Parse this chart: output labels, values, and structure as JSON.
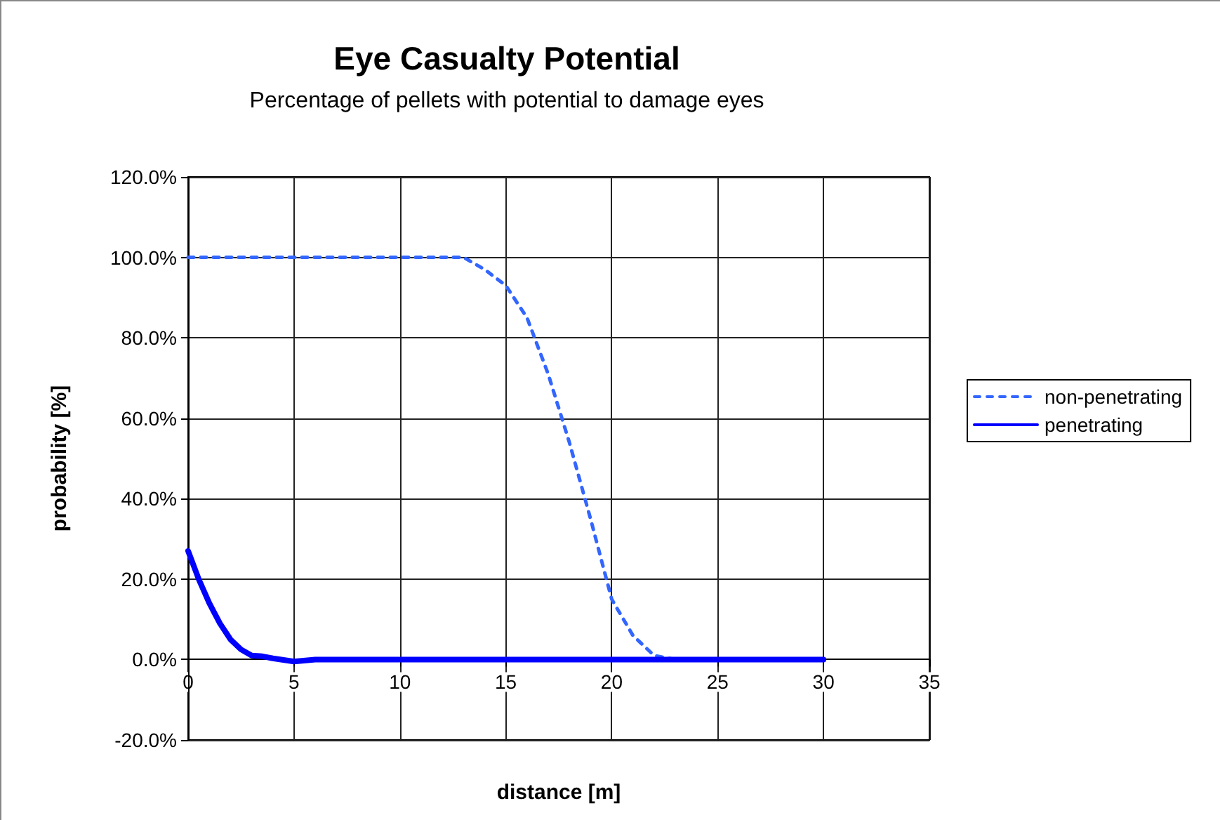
{
  "chart_data": {
    "type": "line",
    "title": "Eye Casualty Potential",
    "subtitle": "Percentage of pellets with potential to damage eyes",
    "xlabel": "distance [m]",
    "ylabel": "probability [%]",
    "series": [
      {
        "name": "non-penetrating",
        "color": "#3366ff",
        "line_style": "dashed",
        "x": [
          0,
          5,
          10,
          12,
          13,
          14,
          15,
          16,
          17,
          18,
          19,
          20,
          21,
          22,
          23,
          25,
          30
        ],
        "values": [
          100,
          100,
          100,
          100,
          100,
          97,
          93,
          85,
          71,
          54,
          35,
          15,
          6,
          1,
          0,
          0,
          0
        ]
      },
      {
        "name": "penetrating",
        "color": "#0000ff",
        "line_style": "solid",
        "x": [
          0,
          0.5,
          1,
          1.5,
          2,
          2.5,
          3,
          3.5,
          4,
          5,
          6,
          10,
          20,
          30
        ],
        "values": [
          27,
          20,
          14,
          9,
          5,
          2.5,
          1,
          0.8,
          0.3,
          -0.5,
          0,
          0,
          0,
          0
        ]
      }
    ],
    "xlim": [
      0,
      35
    ],
    "xticks": [
      0,
      5,
      10,
      15,
      20,
      25,
      30,
      35
    ],
    "ylim": [
      -20,
      120
    ],
    "yticks": [
      {
        "value": -20,
        "label": "-20.0%"
      },
      {
        "value": 0,
        "label": "0.0%"
      },
      {
        "value": 20,
        "label": "20.0%"
      },
      {
        "value": 40,
        "label": "40.0%"
      },
      {
        "value": 60,
        "label": "60.0%"
      },
      {
        "value": 80,
        "label": "80.0%"
      },
      {
        "value": 100,
        "label": "100.0%"
      },
      {
        "value": 120,
        "label": "120.0%"
      }
    ],
    "grid": true,
    "legend": "right",
    "marker": "none"
  }
}
